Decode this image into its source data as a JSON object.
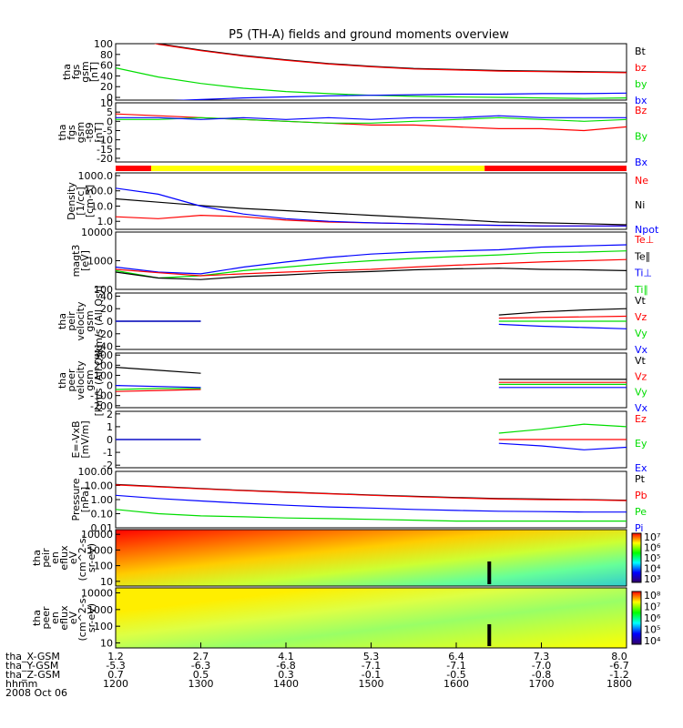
{
  "title": "P5 (TH-A) fields and ground moments overview",
  "colors": {
    "black": "#000000",
    "red": "#ff0000",
    "green": "#00dd00",
    "blue": "#0000ff",
    "yellow": "#ffff00"
  },
  "chart_data": {
    "type": "line",
    "time": {
      "start": "1200",
      "end": "1800",
      "tick_hhmm": [
        "1200",
        "1300",
        "1400",
        "1500",
        "1600",
        "1700",
        "1800"
      ]
    },
    "status_bar": {
      "segments": [
        {
          "from": "1200",
          "to": "1225",
          "color": "red"
        },
        {
          "from": "1225",
          "to": "1620",
          "color": "yellow"
        },
        {
          "from": "1620",
          "to": "1800",
          "color": "red"
        }
      ]
    },
    "panels": [
      {
        "id": "fgs-gsm",
        "ylabel": [
          "tha",
          "fgs",
          "gsm",
          "[nT]"
        ],
        "ylim": [
          -5,
          100
        ],
        "ticks": [
          "100",
          "80",
          "60",
          "40",
          "20",
          "0"
        ],
        "legend": [
          {
            "name": "Bt",
            "color": "black"
          },
          {
            "name": "bz",
            "color": "red"
          },
          {
            "name": "by",
            "color": "green"
          },
          {
            "name": "bx",
            "color": "blue"
          }
        ],
        "series": [
          {
            "name": "Bt",
            "color": "black",
            "values": [
              120,
              100,
              88,
              78,
              70,
              63,
              58,
              54,
              52,
              50,
              49,
              48,
              47
            ]
          },
          {
            "name": "bz",
            "color": "red",
            "values": [
              119,
              99,
              87,
              77,
              69,
              62,
              57,
              53,
              51,
              49,
              48,
              47,
              46
            ]
          },
          {
            "name": "by",
            "color": "green",
            "values": [
              55,
              38,
              26,
              17,
              11,
              7,
              4,
              2,
              1,
              0,
              -1,
              -2,
              -1
            ]
          },
          {
            "name": "bx",
            "color": "blue",
            "values": [
              -10,
              -7,
              -4,
              -1,
              1,
              3,
              4,
              5,
              6,
              6,
              7,
              7,
              8
            ]
          }
        ]
      },
      {
        "id": "fgs-t89",
        "ylabel": [
          "tha",
          "fgs",
          "gsm",
          "-t89",
          "[nT]"
        ],
        "ylim": [
          -22,
          10
        ],
        "ticks": [
          "10",
          "5",
          "0",
          "-5",
          "-10",
          "-15",
          "-20"
        ],
        "legend": [
          {
            "name": "Bz",
            "color": "red"
          },
          {
            "name": "By",
            "color": "green"
          },
          {
            "name": "Bx",
            "color": "blue"
          }
        ],
        "series": [
          {
            "name": "Bz",
            "color": "red",
            "values": [
              4,
              3,
              2,
              1,
              0,
              -1,
              -2,
              -2,
              -3,
              -4,
              -4,
              -5,
              -3
            ]
          },
          {
            "name": "By",
            "color": "green",
            "values": [
              1,
              1,
              2,
              1,
              0,
              -1,
              -1,
              0,
              1,
              2,
              1,
              0,
              1
            ]
          },
          {
            "name": "Bx",
            "color": "blue",
            "values": [
              2,
              2,
              1,
              2,
              1,
              2,
              1,
              2,
              2,
              3,
              2,
              2,
              2
            ]
          }
        ]
      },
      {
        "id": "density",
        "ylabel": [
          "Density",
          "[1/cc]",
          "[cm-3]"
        ],
        "scale": "log",
        "ylim": [
          0.3,
          1500
        ],
        "ticks": [
          "1000.0",
          "100.0",
          "10.0",
          "1.0"
        ],
        "legend": [
          {
            "name": "Ne",
            "color": "red"
          },
          {
            "name": "Ni",
            "color": "black"
          },
          {
            "name": "Npot",
            "color": "blue"
          }
        ],
        "series": [
          {
            "name": "Ni",
            "color": "black",
            "values": [
              30,
              18,
              11,
              7,
              5,
              3.5,
              2.5,
              1.8,
              1.3,
              0.9,
              0.8,
              0.7,
              0.6
            ]
          },
          {
            "name": "Ne",
            "color": "red",
            "values": [
              2,
              1.5,
              2.5,
              2.0,
              1.2,
              0.9,
              0.8,
              0.7,
              0.6,
              0.55,
              0.5,
              0.5,
              0.5
            ]
          },
          {
            "name": "Npot",
            "color": "blue",
            "values": [
              150,
              60,
              10,
              3,
              1.5,
              1.0,
              0.8,
              0.7,
              0.6,
              0.55,
              0.5,
              0.5,
              0.5
            ]
          }
        ]
      },
      {
        "id": "temperature",
        "ylabel": [
          "magt3",
          "[eV]"
        ],
        "scale": "log",
        "ylim": [
          100,
          10000
        ],
        "ticks": [
          "10000",
          "1000",
          "100"
        ],
        "legend": [
          {
            "name": "Te⊥",
            "color": "red"
          },
          {
            "name": "Te∥",
            "color": "black"
          },
          {
            "name": "Ti⊥",
            "color": "blue"
          },
          {
            "name": "Ti∥",
            "color": "green"
          }
        ],
        "series": [
          {
            "name": "Ti⊥",
            "color": "blue",
            "values": [
              600,
              400,
              350,
              600,
              900,
              1300,
              1700,
              2000,
              2200,
              2400,
              3000,
              3300,
              3600
            ]
          },
          {
            "name": "Ti∥",
            "color": "green",
            "values": [
              450,
              250,
              300,
              450,
              600,
              800,
              1000,
              1200,
              1400,
              1600,
              1900,
              2000,
              2200
            ]
          },
          {
            "name": "Te⊥",
            "color": "red",
            "values": [
              500,
              380,
              300,
              350,
              400,
              450,
              500,
              600,
              700,
              800,
              900,
              1000,
              1100
            ]
          },
          {
            "name": "Te∥",
            "color": "black",
            "values": [
              400,
              250,
              220,
              280,
              320,
              380,
              420,
              480,
              520,
              550,
              500,
              480,
              450
            ]
          }
        ]
      },
      {
        "id": "peir-velocity",
        "ylabel": [
          "tha",
          "peir",
          "velocity",
          "gsm",
          "[km/s (All Qs)]"
        ],
        "ylim": [
          -45,
          45
        ],
        "ticks": [
          "40",
          "20",
          "0",
          "-20",
          "-40"
        ],
        "legend": [
          {
            "name": "Vt",
            "color": "black"
          },
          {
            "name": "Vz",
            "color": "red"
          },
          {
            "name": "Vy",
            "color": "green"
          },
          {
            "name": "Vx",
            "color": "blue"
          }
        ],
        "series": [
          {
            "name": "Vt",
            "color": "black",
            "values": [
              0,
              0,
              0,
              null,
              null,
              null,
              null,
              null,
              null,
              10,
              15,
              18,
              20
            ]
          },
          {
            "name": "Vz",
            "color": "red",
            "values": [
              0,
              0,
              0,
              null,
              null,
              null,
              null,
              null,
              null,
              5,
              6,
              7,
              8
            ]
          },
          {
            "name": "Vy",
            "color": "green",
            "values": [
              0,
              0,
              0,
              null,
              null,
              null,
              null,
              null,
              null,
              0,
              0,
              0,
              0
            ]
          },
          {
            "name": "Vx",
            "color": "blue",
            "values": [
              0,
              0,
              0,
              null,
              null,
              null,
              null,
              null,
              null,
              -5,
              -8,
              -10,
              -12
            ]
          }
        ]
      },
      {
        "id": "peer-velocity",
        "ylabel": [
          "tha",
          "peer",
          "velocity",
          "gsm",
          "[km/s (All Qs)]"
        ],
        "ylim": [
          -220,
          320
        ],
        "ticks": [
          "300",
          "200",
          "100",
          "0",
          "-100",
          "-200"
        ],
        "legend": [
          {
            "name": "Vt",
            "color": "black"
          },
          {
            "name": "Vz",
            "color": "red"
          },
          {
            "name": "Vy",
            "color": "green"
          },
          {
            "name": "Vx",
            "color": "blue"
          }
        ],
        "series": [
          {
            "name": "Vt",
            "color": "black",
            "values": [
              180,
              150,
              120,
              null,
              null,
              null,
              null,
              null,
              null,
              60,
              60,
              60,
              60
            ]
          },
          {
            "name": "Vz",
            "color": "red",
            "values": [
              -60,
              -50,
              -40,
              null,
              null,
              null,
              null,
              null,
              null,
              30,
              30,
              30,
              30
            ]
          },
          {
            "name": "Vy",
            "color": "green",
            "values": [
              -40,
              -30,
              -30,
              null,
              null,
              null,
              null,
              null,
              null,
              10,
              10,
              10,
              10
            ]
          },
          {
            "name": "Vx",
            "color": "blue",
            "values": [
              0,
              -10,
              -20,
              null,
              null,
              null,
              null,
              null,
              null,
              -20,
              -20,
              -20,
              -20
            ]
          }
        ]
      },
      {
        "id": "efield",
        "ylabel": [
          "E=-VxB",
          "[mV/m]"
        ],
        "ylim": [
          -2.2,
          2.2
        ],
        "ticks": [
          "2",
          "1",
          "0",
          "-1",
          "-2"
        ],
        "legend": [
          {
            "name": "Ez",
            "color": "red"
          },
          {
            "name": "Ey",
            "color": "green"
          },
          {
            "name": "Ex",
            "color": "blue"
          }
        ],
        "series": [
          {
            "name": "Ez",
            "color": "red",
            "values": [
              0,
              0,
              0,
              null,
              null,
              null,
              null,
              null,
              null,
              0,
              0,
              0,
              0
            ]
          },
          {
            "name": "Ey",
            "color": "green",
            "values": [
              0,
              0,
              0,
              null,
              null,
              null,
              null,
              null,
              null,
              0.5,
              0.8,
              1.2,
              1.0
            ]
          },
          {
            "name": "Ex",
            "color": "blue",
            "values": [
              0,
              0,
              0,
              null,
              null,
              null,
              null,
              null,
              null,
              -0.3,
              -0.5,
              -0.8,
              -0.6
            ]
          }
        ]
      },
      {
        "id": "pressure",
        "ylabel": [
          "Pressure",
          "[nPa]"
        ],
        "scale": "log",
        "ylim": [
          0.01,
          100
        ],
        "ticks": [
          "100.00",
          "10.00",
          "1.00",
          "0.10",
          "0.01"
        ],
        "legend": [
          {
            "name": "Pt",
            "color": "black"
          },
          {
            "name": "Pb",
            "color": "red"
          },
          {
            "name": "Pe",
            "color": "green"
          },
          {
            "name": "Pi",
            "color": "blue"
          }
        ],
        "series": [
          {
            "name": "Pt",
            "color": "black",
            "values": [
              12,
              8.5,
              6,
              4.5,
              3.5,
              2.7,
              2.1,
              1.7,
              1.4,
              1.2,
              1.1,
              1.0,
              0.9
            ]
          },
          {
            "name": "Pb",
            "color": "red",
            "values": [
              11,
              8,
              5.8,
              4.3,
              3.3,
              2.6,
              2.0,
              1.6,
              1.3,
              1.1,
              1.0,
              0.95,
              0.85
            ]
          },
          {
            "name": "Pi",
            "color": "blue",
            "values": [
              2,
              1.2,
              0.8,
              0.55,
              0.4,
              0.3,
              0.25,
              0.2,
              0.17,
              0.15,
              0.14,
              0.13,
              0.13
            ]
          },
          {
            "name": "Pe",
            "color": "green",
            "values": [
              0.2,
              0.1,
              0.07,
              0.06,
              0.05,
              0.045,
              0.04,
              0.035,
              0.03,
              0.03,
              0.03,
              0.03,
              0.03
            ]
          }
        ]
      }
    ],
    "spectrograms": [
      {
        "id": "peir-en-eflux",
        "ylabel": [
          "tha",
          "peir",
          "en",
          "eflux",
          "eV",
          "(cm^2-s-",
          "sr-eV)"
        ],
        "scale": "log",
        "ylim": [
          5,
          20000
        ],
        "ticks": [
          "10000",
          "1000",
          "100",
          "10"
        ],
        "colorbar_ticks": [
          "10⁷",
          "10⁶",
          "10⁵",
          "10⁴",
          "10³"
        ]
      },
      {
        "id": "peer-en-eflux",
        "ylabel": [
          "tha",
          "peer",
          "en",
          "eflux",
          "eV",
          "(cm^2-s-",
          "sr-eV)"
        ],
        "scale": "log",
        "ylim": [
          5,
          20000
        ],
        "ticks": [
          "10000",
          "1000",
          "100",
          "10"
        ],
        "colorbar_ticks": [
          "10⁸",
          "10⁷",
          "10⁶",
          "10⁵",
          "10⁴"
        ]
      }
    ],
    "ephemeris": {
      "labels": [
        "tha_X-GSM",
        "tha_Y-GSM",
        "tha_Z-GSM",
        "hhmm",
        "2008 Oct 06"
      ],
      "rows": [
        [
          "1.2",
          "2.7",
          "4.1",
          "5.3",
          "6.4",
          "7.3",
          "8.0"
        ],
        [
          "-5.3",
          "-6.3",
          "-6.8",
          "-7.1",
          "-7.1",
          "-7.0",
          "-6.7"
        ],
        [
          "0.7",
          "0.5",
          "0.3",
          "-0.1",
          "-0.5",
          "-0.8",
          "-1.2"
        ],
        [
          "1200",
          "1300",
          "1400",
          "1500",
          "1600",
          "1700",
          "1800"
        ]
      ]
    }
  }
}
